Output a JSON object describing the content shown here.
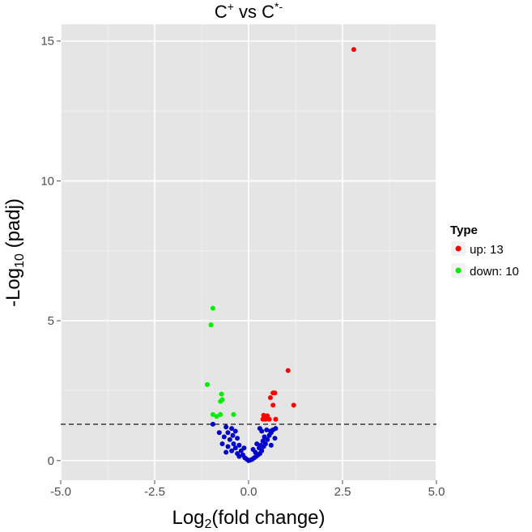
{
  "chart_data": {
    "type": "scatter",
    "title": "C+ vs C*-",
    "title_parts": {
      "base1": "C",
      "sup1": "+",
      "mid": " vs C",
      "sup2": "*-"
    },
    "xlabel_parts": {
      "pre": "Log",
      "sub": "2",
      "post": "(fold change)"
    },
    "ylabel_parts": {
      "pre": "-Log",
      "sub": "10",
      "post": " (padj)"
    },
    "xlim": [
      -5,
      5
    ],
    "ylim": [
      -0.7,
      15.6
    ],
    "x_ticks": [
      -5.0,
      -2.5,
      0.0,
      2.5,
      5.0
    ],
    "x_tick_labels": [
      "-5.0",
      "-2.5",
      "0.0",
      "2.5",
      "5.0"
    ],
    "y_ticks": [
      0,
      5,
      10,
      15
    ],
    "y_tick_labels": [
      "0",
      "5",
      "10",
      "15"
    ],
    "threshold_y": 1.3,
    "grid": true,
    "legend": {
      "title": "Type",
      "position": "right",
      "entries": [
        {
          "label": "up: 13",
          "color": "#ff0000"
        },
        {
          "label": "down: 10",
          "color": "#00ee00"
        }
      ]
    },
    "series": [
      {
        "name": "up: 13",
        "color": "#ff0000",
        "points": [
          [
            2.8,
            14.7
          ],
          [
            1.05,
            3.22
          ],
          [
            1.2,
            1.98
          ],
          [
            0.65,
            2.42
          ],
          [
            0.7,
            2.42
          ],
          [
            0.58,
            2.25
          ],
          [
            0.65,
            1.98
          ],
          [
            0.4,
            1.62
          ],
          [
            0.45,
            1.48
          ],
          [
            0.38,
            1.48
          ],
          [
            0.55,
            1.48
          ],
          [
            0.72,
            1.48
          ],
          [
            0.5,
            1.6
          ]
        ]
      },
      {
        "name": "down: 10",
        "color": "#00ee00",
        "points": [
          [
            -0.95,
            5.45
          ],
          [
            -1.0,
            4.85
          ],
          [
            -1.1,
            2.72
          ],
          [
            -0.72,
            2.38
          ],
          [
            -0.7,
            2.18
          ],
          [
            -0.75,
            2.12
          ],
          [
            -0.95,
            1.65
          ],
          [
            -0.4,
            1.65
          ],
          [
            -0.75,
            1.65
          ],
          [
            -0.85,
            1.58
          ]
        ]
      },
      {
        "name": "",
        "color": "#0000cc",
        "points": [
          [
            -0.95,
            1.3
          ],
          [
            -0.6,
            1.2
          ],
          [
            -0.45,
            1.15
          ],
          [
            -0.78,
            1.0
          ],
          [
            -0.55,
            1.0
          ],
          [
            -0.35,
            1.05
          ],
          [
            -0.42,
            0.9
          ],
          [
            -0.65,
            0.85
          ],
          [
            -0.3,
            0.8
          ],
          [
            -0.5,
            0.75
          ],
          [
            -0.7,
            0.6
          ],
          [
            -0.4,
            0.6
          ],
          [
            -0.55,
            0.5
          ],
          [
            -0.25,
            0.55
          ],
          [
            -0.35,
            0.45
          ],
          [
            -0.45,
            0.35
          ],
          [
            -0.2,
            0.35
          ],
          [
            -0.3,
            0.25
          ],
          [
            -0.15,
            0.2
          ],
          [
            -0.25,
            0.15
          ],
          [
            -0.1,
            0.1
          ],
          [
            -0.05,
            0.05
          ],
          [
            0.0,
            0.0
          ],
          [
            0.05,
            0.02
          ],
          [
            0.1,
            0.05
          ],
          [
            0.15,
            0.1
          ],
          [
            0.2,
            0.15
          ],
          [
            0.25,
            0.2
          ],
          [
            0.3,
            0.25
          ],
          [
            0.18,
            0.3
          ],
          [
            0.35,
            0.35
          ],
          [
            0.28,
            0.45
          ],
          [
            0.4,
            0.5
          ],
          [
            0.32,
            0.55
          ],
          [
            0.45,
            0.6
          ],
          [
            0.38,
            0.7
          ],
          [
            0.5,
            0.75
          ],
          [
            0.42,
            0.85
          ],
          [
            0.55,
            0.9
          ],
          [
            0.6,
            1.0
          ],
          [
            0.35,
            1.05
          ],
          [
            0.48,
            1.1
          ],
          [
            0.65,
            1.1
          ],
          [
            0.72,
            1.15
          ],
          [
            0.3,
            1.15
          ],
          [
            0.58,
            1.05
          ],
          [
            0.6,
            0.55
          ],
          [
            0.22,
            0.6
          ],
          [
            0.7,
            0.8
          ],
          [
            -0.6,
            0.3
          ],
          [
            -0.12,
            0.45
          ],
          [
            0.12,
            0.4
          ]
        ]
      }
    ]
  }
}
